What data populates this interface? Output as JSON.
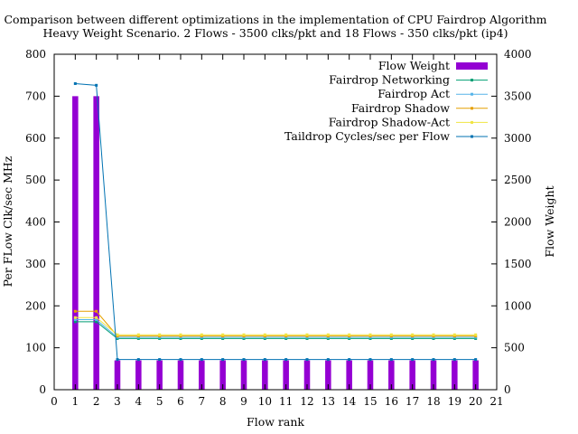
{
  "chart_data": {
    "type": "bar",
    "title": "Comparison between different optimizations in the implementation of CPU Fairdrop Algorithm",
    "subtitle": "Heavy Weight Scenario. 2 Flows - 3500 clks/pkt and 18 Flows - 350 clks/pkt (ip4)",
    "xlabel": "Flow rank",
    "ylabel": "Per FLow Clk/sec MHz",
    "y2label": "Flow Weight",
    "xlim": [
      0,
      21
    ],
    "ylim": [
      0,
      800
    ],
    "y2lim": [
      0,
      4000
    ],
    "xticks": [
      0,
      1,
      2,
      3,
      4,
      5,
      6,
      7,
      8,
      9,
      10,
      11,
      12,
      13,
      14,
      15,
      16,
      17,
      18,
      19,
      20,
      21
    ],
    "yticks": [
      0,
      100,
      200,
      300,
      400,
      500,
      600,
      700,
      800
    ],
    "y2ticks": [
      0,
      500,
      1000,
      1500,
      2000,
      2500,
      3000,
      3500,
      4000
    ],
    "legend_position": "top-right",
    "grid": false,
    "x": [
      1,
      2,
      3,
      4,
      5,
      6,
      7,
      8,
      9,
      10,
      11,
      12,
      13,
      14,
      15,
      16,
      17,
      18,
      19,
      20
    ],
    "series": [
      {
        "name": "Flow Weight",
        "kind": "bar",
        "axis": "y2",
        "color": "#9400d3",
        "values": [
          3500,
          3500,
          350,
          350,
          350,
          350,
          350,
          350,
          350,
          350,
          350,
          350,
          350,
          350,
          350,
          350,
          350,
          350,
          350,
          350
        ]
      },
      {
        "name": "Fairdrop Networking",
        "kind": "line",
        "axis": "y",
        "color": "#009e73",
        "values": [
          162,
          162,
          122,
          122,
          122,
          122,
          122,
          122,
          122,
          122,
          122,
          122,
          122,
          122,
          122,
          122,
          122,
          122,
          122,
          122
        ]
      },
      {
        "name": "Fairdrop Act",
        "kind": "line",
        "axis": "y",
        "color": "#56b4e9",
        "values": [
          167,
          167,
          125,
          125,
          125,
          125,
          125,
          125,
          125,
          125,
          125,
          125,
          125,
          125,
          125,
          125,
          125,
          125,
          125,
          125
        ]
      },
      {
        "name": "Fairdrop Shadow",
        "kind": "line",
        "axis": "y",
        "color": "#e69f00",
        "values": [
          187,
          187,
          128,
          128,
          128,
          128,
          128,
          128,
          128,
          128,
          128,
          128,
          128,
          128,
          128,
          128,
          128,
          128,
          128,
          128
        ]
      },
      {
        "name": "Fairdrop Shadow-Act",
        "kind": "line",
        "axis": "y",
        "color": "#f0e442",
        "values": [
          172,
          172,
          131,
          131,
          131,
          131,
          131,
          131,
          131,
          131,
          131,
          131,
          131,
          131,
          131,
          131,
          131,
          131,
          131,
          131
        ]
      },
      {
        "name": "Taildrop Cycles/sec per Flow",
        "kind": "line",
        "axis": "y",
        "color": "#0072b2",
        "values": [
          730,
          726,
          72,
          72,
          72,
          72,
          72,
          72,
          72,
          72,
          72,
          72,
          72,
          72,
          72,
          72,
          72,
          72,
          72,
          72
        ]
      }
    ]
  }
}
